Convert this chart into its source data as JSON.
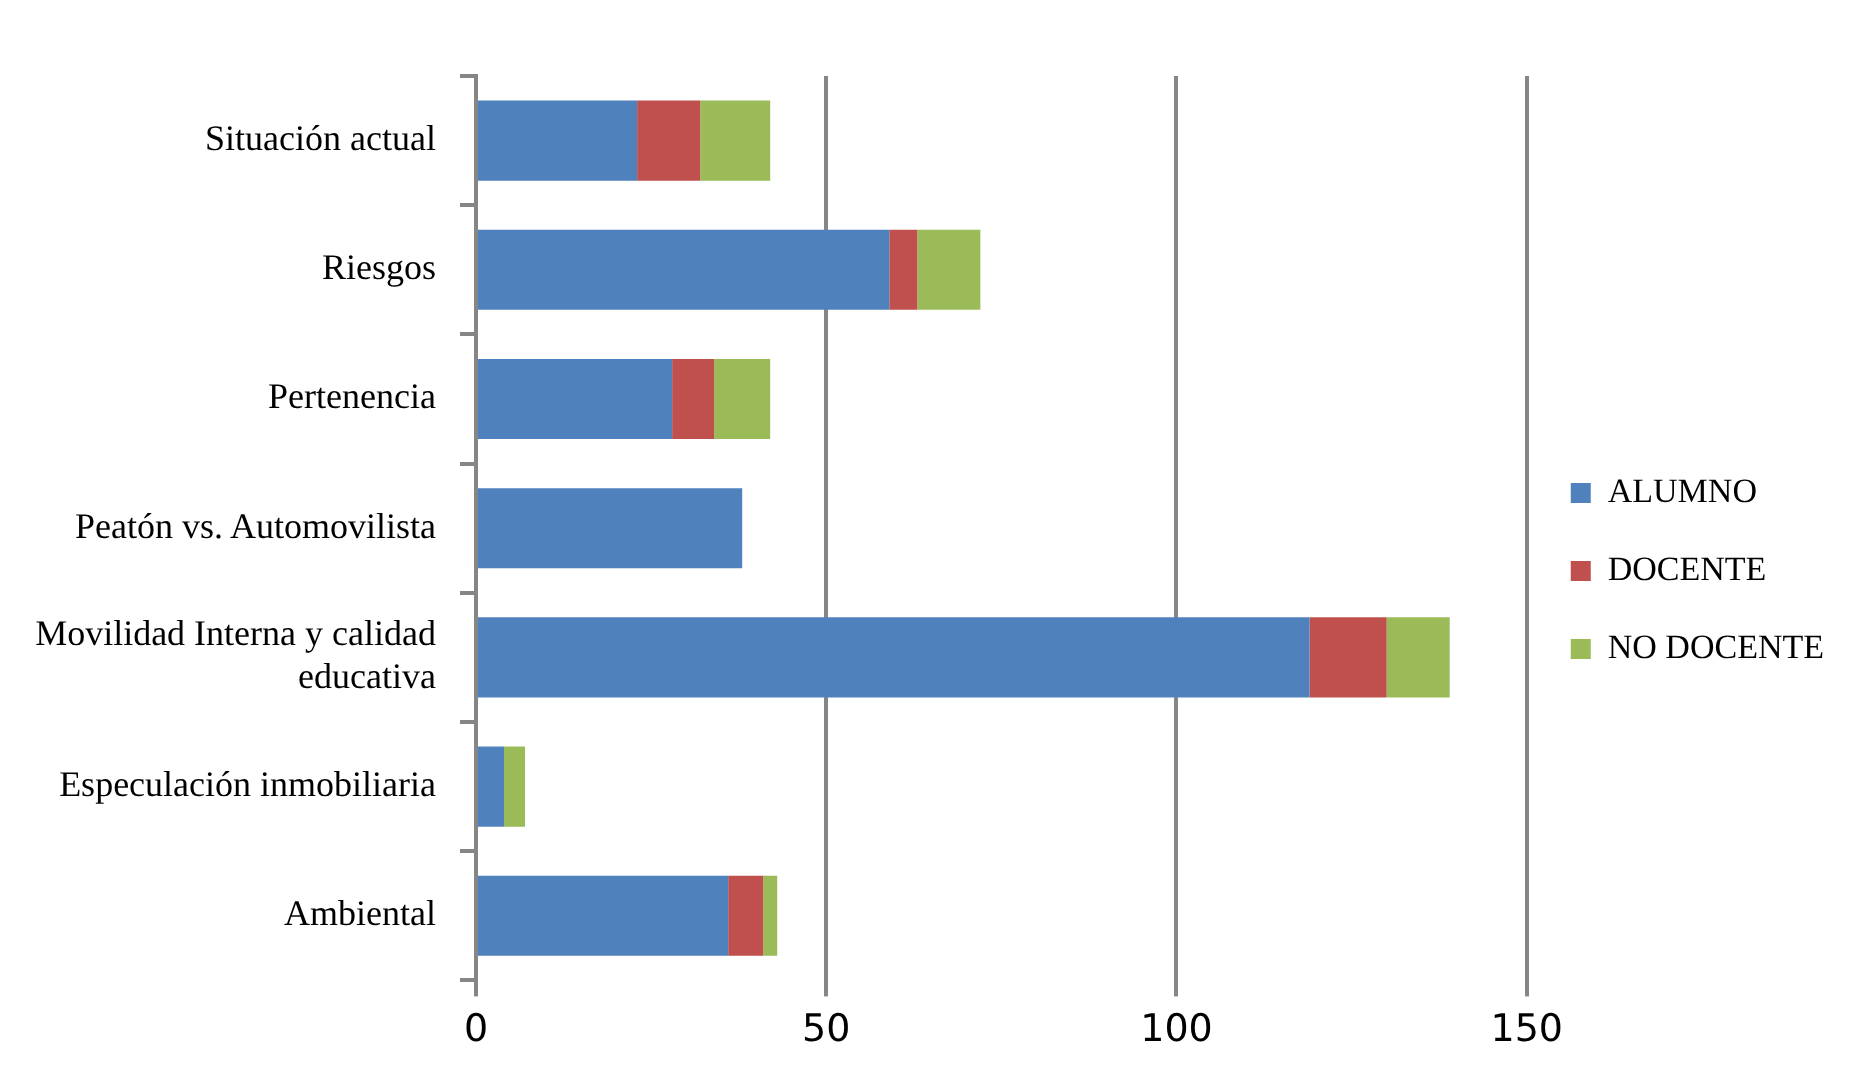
{
  "chart_data": {
    "type": "bar",
    "orientation": "horizontal",
    "stacked": true,
    "categories": [
      "Situación actual",
      "Riesgos",
      "Pertenencia",
      "Peatón vs. Automovilista",
      "Movilidad Interna y calidad educativa",
      "Especulación inmobiliaria",
      "Ambiental"
    ],
    "series": [
      {
        "name": "ALUMNO",
        "color": "#4f81bd",
        "values": [
          23,
          59,
          28,
          38,
          119,
          4,
          36
        ]
      },
      {
        "name": "DOCENTE",
        "color": "#c0504d",
        "values": [
          9,
          4,
          6,
          0,
          11,
          0,
          5
        ]
      },
      {
        "name": "NO DOCENTE",
        "color": "#9bbb59",
        "values": [
          10,
          9,
          8,
          0,
          9,
          3,
          2
        ]
      }
    ],
    "xlim": [
      0,
      150
    ],
    "xticks": [
      0,
      50,
      100,
      150
    ],
    "grid": "x",
    "legend": "right"
  }
}
